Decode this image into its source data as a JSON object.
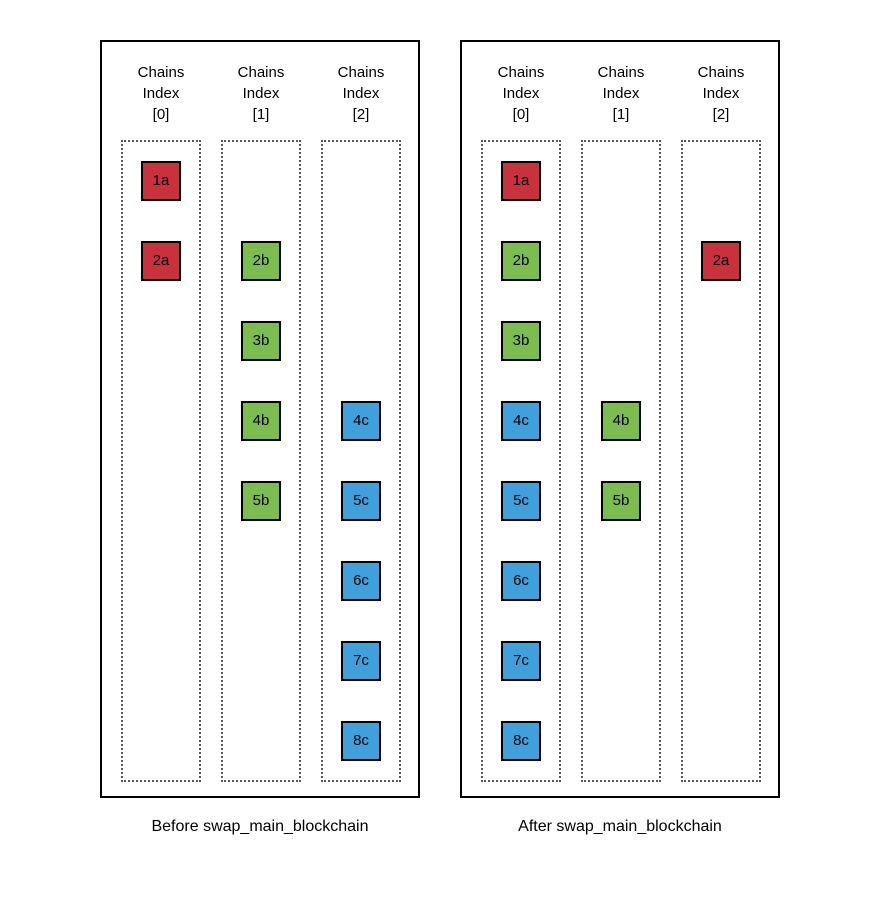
{
  "diagram": {
    "colors": {
      "red": "#C9313D",
      "green": "#7BBD4F",
      "blue": "#3FA0DC",
      "line": "#000000",
      "dotted_border": "#555555"
    },
    "panels": [
      {
        "id": "before",
        "caption": "Before swap_main_blockchain",
        "columns": [
          {
            "header_lines": [
              "Chains",
              "Index",
              "[0]"
            ]
          },
          {
            "header_lines": [
              "Chains",
              "Index",
              "[1]"
            ]
          },
          {
            "header_lines": [
              "Chains",
              "Index",
              "[2]"
            ]
          }
        ],
        "nodes": [
          {
            "id": "1a",
            "label": "1a",
            "col": 0,
            "row": 0,
            "color": "red"
          },
          {
            "id": "2a",
            "label": "2a",
            "col": 0,
            "row": 1,
            "color": "red"
          },
          {
            "id": "2b",
            "label": "2b",
            "col": 1,
            "row": 1,
            "color": "green"
          },
          {
            "id": "3b",
            "label": "3b",
            "col": 1,
            "row": 2,
            "color": "green"
          },
          {
            "id": "4b",
            "label": "4b",
            "col": 1,
            "row": 3,
            "color": "green"
          },
          {
            "id": "5b",
            "label": "5b",
            "col": 1,
            "row": 4,
            "color": "green"
          },
          {
            "id": "4c",
            "label": "4c",
            "col": 2,
            "row": 3,
            "color": "blue"
          },
          {
            "id": "5c",
            "label": "5c",
            "col": 2,
            "row": 4,
            "color": "blue"
          },
          {
            "id": "6c",
            "label": "6c",
            "col": 2,
            "row": 5,
            "color": "blue"
          },
          {
            "id": "7c",
            "label": "7c",
            "col": 2,
            "row": 6,
            "color": "blue"
          },
          {
            "id": "8c",
            "label": "8c",
            "col": 2,
            "row": 7,
            "color": "blue"
          }
        ],
        "edges": [
          {
            "from": "1a",
            "to": "2a"
          },
          {
            "from": "1a",
            "to": "2b"
          },
          {
            "from": "2b",
            "to": "3b"
          },
          {
            "from": "3b",
            "to": "4b"
          },
          {
            "from": "3b",
            "to": "4c"
          },
          {
            "from": "4b",
            "to": "5b"
          },
          {
            "from": "4c",
            "to": "5c"
          },
          {
            "from": "5c",
            "to": "6c"
          },
          {
            "from": "6c",
            "to": "7c"
          },
          {
            "from": "7c",
            "to": "8c"
          }
        ]
      },
      {
        "id": "after",
        "caption": "After swap_main_blockchain",
        "columns": [
          {
            "header_lines": [
              "Chains",
              "Index",
              "[0]"
            ]
          },
          {
            "header_lines": [
              "Chains",
              "Index",
              "[1]"
            ]
          },
          {
            "header_lines": [
              "Chains",
              "Index",
              "[2]"
            ]
          }
        ],
        "nodes": [
          {
            "id": "1a",
            "label": "1a",
            "col": 0,
            "row": 0,
            "color": "red"
          },
          {
            "id": "2b",
            "label": "2b",
            "col": 0,
            "row": 1,
            "color": "green"
          },
          {
            "id": "3b",
            "label": "3b",
            "col": 0,
            "row": 2,
            "color": "green"
          },
          {
            "id": "4c",
            "label": "4c",
            "col": 0,
            "row": 3,
            "color": "blue"
          },
          {
            "id": "5c",
            "label": "5c",
            "col": 0,
            "row": 4,
            "color": "blue"
          },
          {
            "id": "6c",
            "label": "6c",
            "col": 0,
            "row": 5,
            "color": "blue"
          },
          {
            "id": "7c",
            "label": "7c",
            "col": 0,
            "row": 6,
            "color": "blue"
          },
          {
            "id": "8c",
            "label": "8c",
            "col": 0,
            "row": 7,
            "color": "blue"
          },
          {
            "id": "4b",
            "label": "4b",
            "col": 1,
            "row": 3,
            "color": "green"
          },
          {
            "id": "5b",
            "label": "5b",
            "col": 1,
            "row": 4,
            "color": "green"
          },
          {
            "id": "2a",
            "label": "2a",
            "col": 2,
            "row": 1,
            "color": "red"
          }
        ],
        "edges": [
          {
            "from": "1a",
            "to": "2b"
          },
          {
            "from": "1a",
            "to": "2a"
          },
          {
            "from": "2b",
            "to": "3b"
          },
          {
            "from": "3b",
            "to": "4c"
          },
          {
            "from": "3b",
            "to": "4b"
          },
          {
            "from": "4c",
            "to": "5c"
          },
          {
            "from": "5c",
            "to": "6c"
          },
          {
            "from": "6c",
            "to": "7c"
          },
          {
            "from": "7c",
            "to": "8c"
          },
          {
            "from": "4b",
            "to": "5b"
          }
        ]
      }
    ]
  }
}
